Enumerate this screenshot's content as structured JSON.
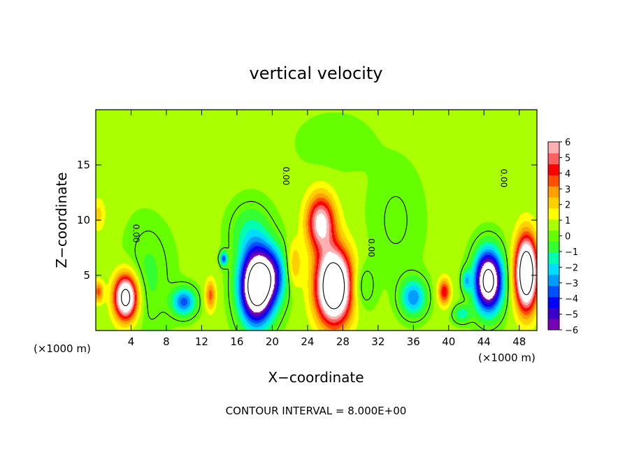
{
  "chart_data": {
    "type": "heatmap",
    "title": "vertical velocity",
    "xlabel": "X−coordinate",
    "ylabel": "Z−coordinate",
    "x_unit_label": "(×1000 m)",
    "z_unit_label": "(×1000 m)",
    "footer": "CONTOUR INTERVAL = 8.000E+00",
    "xlim": [
      0,
      50
    ],
    "zlim": [
      0,
      20
    ],
    "x_ticks": [
      4,
      8,
      12,
      16,
      20,
      24,
      28,
      32,
      36,
      40,
      44,
      48
    ],
    "x_tick_labels": [
      "4",
      "8",
      "12",
      "16",
      "20",
      "24",
      "28",
      "32",
      "36",
      "40",
      "44",
      "48"
    ],
    "z_ticks": [
      5,
      10,
      15
    ],
    "z_tick_labels": [
      "5",
      "10",
      "15"
    ],
    "background_value": 0.5,
    "features": [
      {
        "x": 3.4,
        "z": 3.0,
        "sx": 1.3,
        "sz": 2.0,
        "amp": 9
      },
      {
        "x": 18.2,
        "z": 4.0,
        "sx": 1.8,
        "sz": 3.2,
        "amp": -11
      },
      {
        "x": 20.0,
        "z": 5.0,
        "sx": 1.6,
        "sz": 2.5,
        "amp": -4
      },
      {
        "x": 17.5,
        "z": 9.0,
        "sx": 2.2,
        "sz": 2.5,
        "amp": -1.5
      },
      {
        "x": 27.0,
        "z": 4.0,
        "sx": 2.0,
        "sz": 3.3,
        "amp": 11
      },
      {
        "x": 25.5,
        "z": 9.8,
        "sx": 1.6,
        "sz": 2.5,
        "amp": 6
      },
      {
        "x": 30.0,
        "z": 4.0,
        "sx": 1.4,
        "sz": 2.0,
        "amp": -1.5
      },
      {
        "x": 22.5,
        "z": 6.0,
        "sx": 0.8,
        "sz": 2.0,
        "amp": 2
      },
      {
        "x": 44.5,
        "z": 4.5,
        "sx": 1.5,
        "sz": 2.6,
        "amp": -10
      },
      {
        "x": 48.8,
        "z": 5.2,
        "sx": 1.2,
        "sz": 3.2,
        "amp": 11
      },
      {
        "x": 10.0,
        "z": 2.6,
        "sx": 1.3,
        "sz": 1.2,
        "amp": -4
      },
      {
        "x": 13.0,
        "z": 3.2,
        "sx": 0.6,
        "sz": 1.4,
        "amp": 3
      },
      {
        "x": 14.5,
        "z": 6.5,
        "sx": 0.4,
        "sz": 0.6,
        "amp": -4
      },
      {
        "x": 36.0,
        "z": 3.0,
        "sx": 1.4,
        "sz": 1.6,
        "amp": -3.5
      },
      {
        "x": 39.5,
        "z": 3.5,
        "sx": 0.7,
        "sz": 1.2,
        "amp": 4
      },
      {
        "x": 42.0,
        "z": 4.5,
        "sx": 0.5,
        "sz": 1.0,
        "amp": -2.5
      },
      {
        "x": 41.5,
        "z": 1.5,
        "sx": 1.0,
        "sz": 0.8,
        "amp": -2
      },
      {
        "x": 0.3,
        "z": 10.5,
        "sx": 0.8,
        "sz": 1.5,
        "amp": 1.5
      },
      {
        "x": 0.3,
        "z": 3.5,
        "sx": 0.6,
        "sz": 1.0,
        "amp": 3
      },
      {
        "x": 6.0,
        "z": 5.0,
        "sx": 2.5,
        "sz": 5.0,
        "amp": -1
      },
      {
        "x": 34.0,
        "z": 10.0,
        "sx": 3.0,
        "sz": 5.0,
        "amp": -0.6
      },
      {
        "x": 9.0,
        "z": 15.0,
        "sx": 4.0,
        "sz": 4.0,
        "amp": 0.4
      },
      {
        "x": 27.0,
        "z": 17.0,
        "sx": 4.0,
        "sz": 2.5,
        "amp": -0.5
      }
    ],
    "contours": [
      {
        "level": 0,
        "label": "0.00",
        "label_x": 4.5,
        "label_z": 8.8,
        "dashed": false
      },
      {
        "level": 0,
        "label": "0.00",
        "label_x": 21.5,
        "label_z": 14.0,
        "dashed": false
      },
      {
        "level": 0,
        "label": "0.00",
        "label_x": 31.2,
        "label_z": 7.5,
        "dashed": false
      },
      {
        "level": 0,
        "label": "0.00",
        "label_x": 46.2,
        "label_z": 13.8,
        "dashed": false
      },
      {
        "level": 8,
        "label": "",
        "dashed": false
      },
      {
        "level": -8,
        "label": "",
        "dashed": true
      }
    ],
    "colorbar": {
      "min": -6,
      "max": 6,
      "tick_labels": [
        "6",
        "5",
        "4",
        "3",
        "2",
        "1",
        "0",
        "−1",
        "−2",
        "−3",
        "−4",
        "−5",
        "−6"
      ],
      "colors": [
        "#7a00b8",
        "#3a00c8",
        "#0000ff",
        "#0050ff",
        "#009cff",
        "#00ddff",
        "#00ffb0",
        "#33ff33",
        "#66ff00",
        "#aaff00",
        "#ffff00",
        "#ffd000",
        "#ffa000",
        "#ff5000",
        "#ff0000",
        "#ff6060",
        "#ffb0b0"
      ],
      "saturation_high": "#ffffff",
      "saturation_low": "#ffffff"
    }
  }
}
